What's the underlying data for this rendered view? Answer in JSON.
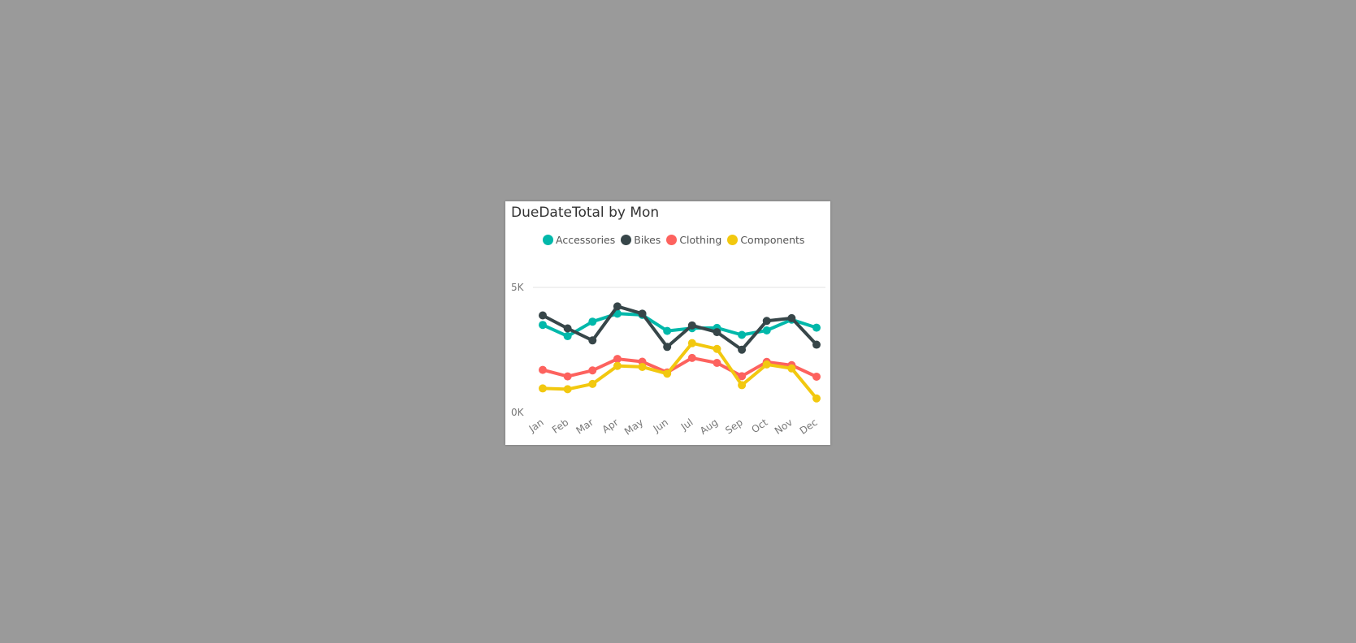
{
  "visual": {
    "title": "DueDateTotal by Mon"
  },
  "chart_data": {
    "type": "line",
    "title": "DueDateTotal by Mon",
    "xlabel": "",
    "ylabel": "",
    "categories": [
      "Jan",
      "Feb",
      "Mar",
      "Apr",
      "May",
      "Jun",
      "Jul",
      "Aug",
      "Sep",
      "Oct",
      "Nov",
      "Dec"
    ],
    "ylim": [
      0,
      5000
    ],
    "y_ticks": [
      {
        "value": 0,
        "label": "0K"
      },
      {
        "value": 5000,
        "label": "5K"
      }
    ],
    "grid": true,
    "legend_position": "top",
    "series": [
      {
        "name": "Accessories",
        "color": "#01B8AA",
        "values": [
          3500,
          3050,
          3630,
          3950,
          3900,
          3260,
          3370,
          3380,
          3100,
          3280,
          3710,
          3390
        ]
      },
      {
        "name": "Bikes",
        "color": "#374649",
        "values": [
          3880,
          3360,
          2880,
          4240,
          3950,
          2620,
          3480,
          3210,
          2510,
          3660,
          3770,
          2710
        ]
      },
      {
        "name": "Clothing",
        "color": "#FD625E",
        "values": [
          1700,
          1440,
          1680,
          2140,
          2030,
          1600,
          2180,
          1980,
          1450,
          2020,
          1890,
          1430
        ]
      },
      {
        "name": "Components",
        "color": "#F2C80F",
        "values": [
          960,
          930,
          1140,
          1860,
          1820,
          1550,
          2770,
          2540,
          1090,
          1920,
          1760,
          560
        ]
      }
    ]
  }
}
